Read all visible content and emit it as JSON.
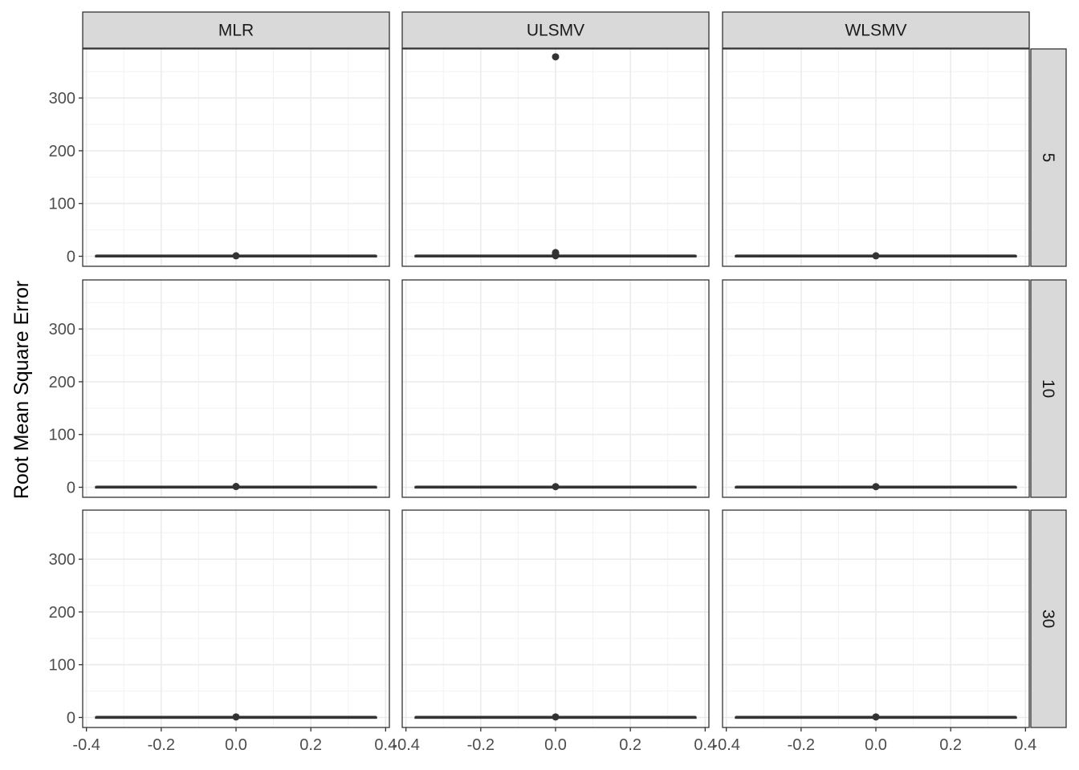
{
  "chart_data": {
    "type": "boxplot",
    "ylabel": "Root Mean Square Error",
    "xlabel": "",
    "columns": [
      "MLR",
      "ULSMV",
      "WLSMV"
    ],
    "rows": [
      "5",
      "10",
      "30"
    ],
    "xlim": [
      -0.41,
      0.41
    ],
    "ylim": [
      -19,
      393
    ],
    "x_ticks": [
      -0.4,
      -0.2,
      0.0,
      0.2,
      0.4
    ],
    "x_tick_labels": [
      "-0.4",
      "-0.2",
      "0.0",
      "0.2",
      "0.4"
    ],
    "y_ticks": [
      0,
      100,
      200,
      300
    ],
    "y_tick_labels": [
      "0",
      "100",
      "200",
      "300"
    ],
    "box_x_range": [
      -0.375,
      0.375
    ],
    "grid": true,
    "panels": [
      {
        "column": "MLR",
        "row": "5",
        "median": 0.5,
        "q1": 0.3,
        "q3": 0.8,
        "outliers": [
          0.9
        ]
      },
      {
        "column": "ULSMV",
        "row": "5",
        "median": 0.5,
        "q1": 0.3,
        "q3": 0.9,
        "outliers": [
          1.0,
          3.0,
          5.0,
          7.0,
          378.0
        ]
      },
      {
        "column": "WLSMV",
        "row": "5",
        "median": 0.5,
        "q1": 0.3,
        "q3": 0.8,
        "outliers": [
          0.9
        ]
      },
      {
        "column": "MLR",
        "row": "10",
        "median": 0.4,
        "q1": 0.2,
        "q3": 0.6,
        "outliers": [
          1.5
        ]
      },
      {
        "column": "ULSMV",
        "row": "10",
        "median": 0.4,
        "q1": 0.2,
        "q3": 0.6,
        "outliers": [
          1.2
        ]
      },
      {
        "column": "WLSMV",
        "row": "10",
        "median": 0.4,
        "q1": 0.2,
        "q3": 0.6,
        "outliers": [
          1.2
        ]
      },
      {
        "column": "MLR",
        "row": "30",
        "median": 0.3,
        "q1": 0.1,
        "q3": 0.5,
        "outliers": [
          1.0
        ]
      },
      {
        "column": "ULSMV",
        "row": "30",
        "median": 0.3,
        "q1": 0.1,
        "q3": 0.5,
        "outliers": [
          1.0
        ]
      },
      {
        "column": "WLSMV",
        "row": "30",
        "median": 0.3,
        "q1": 0.1,
        "q3": 0.5,
        "outliers": [
          1.0
        ]
      }
    ]
  }
}
